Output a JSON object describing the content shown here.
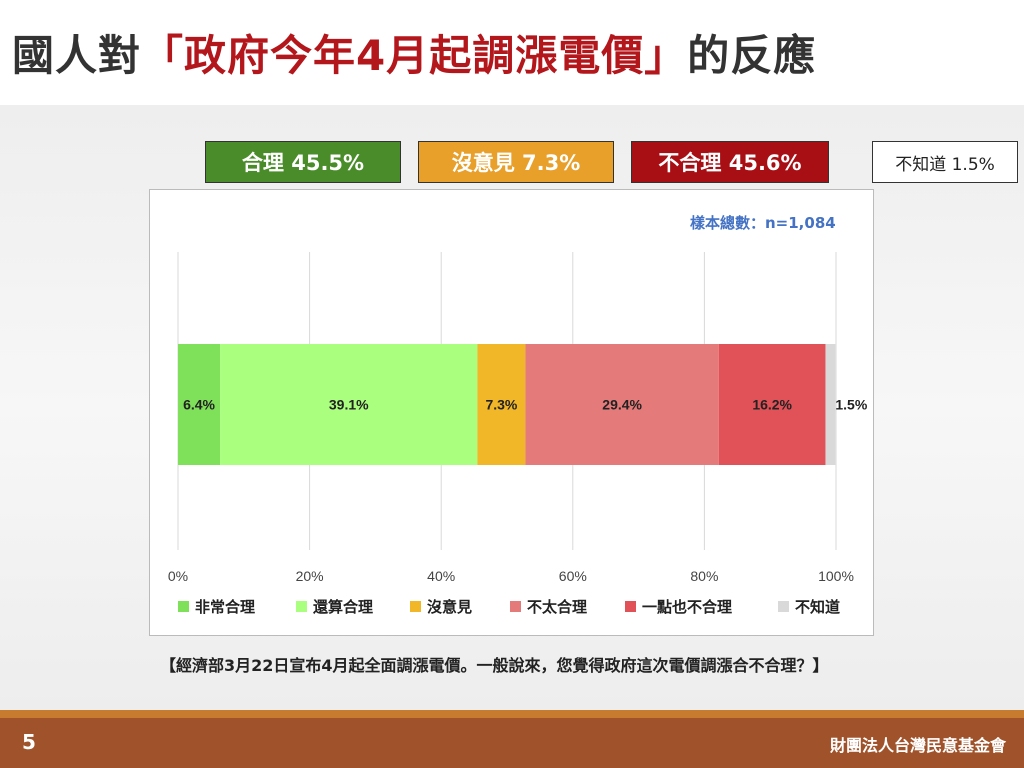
{
  "title": {
    "prefix": "國人對",
    "highlight": "「政府今年4月起調漲電價」",
    "suffix": "的反應"
  },
  "summary": [
    {
      "label": "合理 45.5%",
      "bg": "#4a8c2a",
      "fg": "#ffffff"
    },
    {
      "label": "沒意見 7.3%",
      "bg": "#e8a02a",
      "fg": "#ffffff"
    },
    {
      "label": "不合理 45.6%",
      "bg": "#a80f14",
      "fg": "#ffffff"
    },
    {
      "label": "不知道 1.5%",
      "bg": "#ffffff",
      "fg": "#222222"
    }
  ],
  "sample_note": "樣本總數：n=1,084",
  "question": "【經濟部3月22日宣布4月起全面調漲電價。一般說來，您覺得政府這次電價調漲合不合理？】",
  "footer": {
    "page_number": "5",
    "org": "財團法人台灣民意基金會"
  },
  "chart_data": {
    "type": "bar",
    "orientation": "horizontal",
    "stacked": true,
    "xlim": [
      0,
      100
    ],
    "x_ticks": [
      "0%",
      "20%",
      "40%",
      "60%",
      "80%",
      "100%"
    ],
    "grid": true,
    "legend_position": "bottom",
    "series": [
      {
        "name": "非常合理",
        "value": 6.4,
        "label": "6.4%",
        "color": "#7fe05a"
      },
      {
        "name": "還算合理",
        "value": 39.1,
        "label": "39.1%",
        "color": "#aaff7e"
      },
      {
        "name": "沒意見",
        "value": 7.3,
        "label": "7.3%",
        "color": "#f1b728"
      },
      {
        "name": "不太合理",
        "value": 29.4,
        "label": "29.4%",
        "color": "#e57a7a"
      },
      {
        "name": "一點也不合理",
        "value": 16.2,
        "label": "16.2%",
        "color": "#e15158"
      },
      {
        "name": "不知道",
        "value": 1.5,
        "label": "1.5%",
        "color": "#d9d9d9"
      }
    ]
  }
}
